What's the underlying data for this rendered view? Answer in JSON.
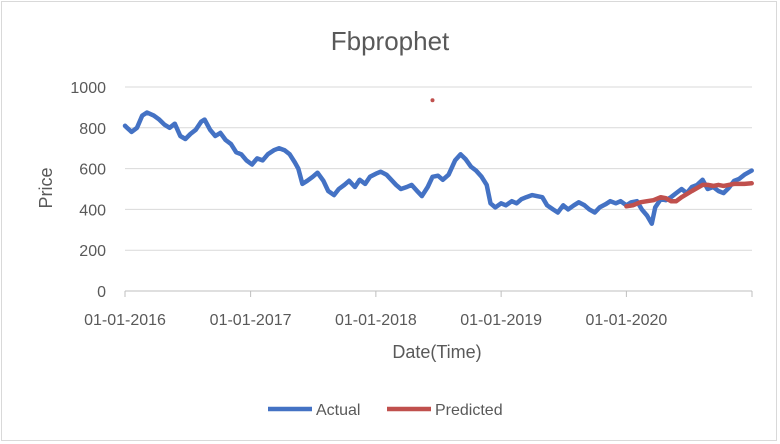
{
  "chart_data": {
    "type": "line",
    "title": "Fbprophet",
    "xlabel": "Date(Time)",
    "ylabel": "Price",
    "ylim": [
      0,
      1000
    ],
    "yticks": [
      0,
      200,
      400,
      600,
      800,
      1000
    ],
    "xlim": [
      "2016-01-01",
      "2021-01-01"
    ],
    "xticks": [
      "01-01-2016",
      "01-01-2017",
      "01-01-2018",
      "01-01-2019",
      "01-01-2020"
    ],
    "grid": "horizontal",
    "legend_position": "bottom",
    "series": [
      {
        "name": "Actual",
        "color": "#4472c4",
        "points": [
          [
            "2016-01-01",
            810
          ],
          [
            "2016-01-20",
            780
          ],
          [
            "2016-02-05",
            800
          ],
          [
            "2016-02-20",
            860
          ],
          [
            "2016-03-05",
            875
          ],
          [
            "2016-03-25",
            860
          ],
          [
            "2016-04-10",
            840
          ],
          [
            "2016-04-25",
            815
          ],
          [
            "2016-05-10",
            800
          ],
          [
            "2016-05-25",
            820
          ],
          [
            "2016-06-10",
            760
          ],
          [
            "2016-06-25",
            745
          ],
          [
            "2016-07-10",
            770
          ],
          [
            "2016-07-25",
            790
          ],
          [
            "2016-08-10",
            830
          ],
          [
            "2016-08-20",
            840
          ],
          [
            "2016-09-05",
            790
          ],
          [
            "2016-09-20",
            760
          ],
          [
            "2016-10-05",
            775
          ],
          [
            "2016-10-20",
            740
          ],
          [
            "2016-11-05",
            720
          ],
          [
            "2016-11-20",
            680
          ],
          [
            "2016-12-05",
            670
          ],
          [
            "2016-12-20",
            640
          ],
          [
            "2017-01-05",
            620
          ],
          [
            "2017-01-20",
            650
          ],
          [
            "2017-02-05",
            640
          ],
          [
            "2017-02-20",
            670
          ],
          [
            "2017-03-10",
            690
          ],
          [
            "2017-03-25",
            700
          ],
          [
            "2017-04-10",
            690
          ],
          [
            "2017-04-25",
            670
          ],
          [
            "2017-05-10",
            630
          ],
          [
            "2017-05-20",
            600
          ],
          [
            "2017-06-01",
            525
          ],
          [
            "2017-06-15",
            540
          ],
          [
            "2017-07-01",
            560
          ],
          [
            "2017-07-15",
            580
          ],
          [
            "2017-08-01",
            540
          ],
          [
            "2017-08-15",
            490
          ],
          [
            "2017-09-01",
            470
          ],
          [
            "2017-09-15",
            500
          ],
          [
            "2017-10-01",
            520
          ],
          [
            "2017-10-15",
            540
          ],
          [
            "2017-11-01",
            510
          ],
          [
            "2017-11-15",
            545
          ],
          [
            "2017-12-01",
            525
          ],
          [
            "2017-12-15",
            560
          ],
          [
            "2018-01-01",
            575
          ],
          [
            "2018-01-15",
            585
          ],
          [
            "2018-02-01",
            570
          ],
          [
            "2018-02-15",
            545
          ],
          [
            "2018-03-01",
            520
          ],
          [
            "2018-03-15",
            500
          ],
          [
            "2018-04-01",
            510
          ],
          [
            "2018-04-15",
            520
          ],
          [
            "2018-05-01",
            490
          ],
          [
            "2018-05-15",
            465
          ],
          [
            "2018-06-01",
            510
          ],
          [
            "2018-06-15",
            560
          ],
          [
            "2018-07-01",
            565
          ],
          [
            "2018-07-15",
            545
          ],
          [
            "2018-08-01",
            570
          ],
          [
            "2018-08-20",
            640
          ],
          [
            "2018-09-05",
            670
          ],
          [
            "2018-09-20",
            645
          ],
          [
            "2018-10-05",
            610
          ],
          [
            "2018-10-20",
            590
          ],
          [
            "2018-11-05",
            560
          ],
          [
            "2018-11-20",
            520
          ],
          [
            "2018-12-01",
            430
          ],
          [
            "2018-12-15",
            410
          ],
          [
            "2019-01-01",
            430
          ],
          [
            "2019-01-15",
            420
          ],
          [
            "2019-02-01",
            440
          ],
          [
            "2019-02-15",
            430
          ],
          [
            "2019-03-01",
            450
          ],
          [
            "2019-03-15",
            460
          ],
          [
            "2019-04-01",
            470
          ],
          [
            "2019-04-15",
            465
          ],
          [
            "2019-05-01",
            460
          ],
          [
            "2019-05-15",
            420
          ],
          [
            "2019-06-01",
            400
          ],
          [
            "2019-06-15",
            385
          ],
          [
            "2019-07-01",
            420
          ],
          [
            "2019-07-15",
            400
          ],
          [
            "2019-08-01",
            420
          ],
          [
            "2019-08-15",
            435
          ],
          [
            "2019-09-01",
            420
          ],
          [
            "2019-09-15",
            400
          ],
          [
            "2019-10-01",
            385
          ],
          [
            "2019-10-15",
            410
          ],
          [
            "2019-11-01",
            425
          ],
          [
            "2019-11-15",
            440
          ],
          [
            "2019-12-01",
            430
          ],
          [
            "2019-12-15",
            440
          ],
          [
            "2020-01-01",
            420
          ],
          [
            "2020-01-15",
            435
          ],
          [
            "2020-02-01",
            440
          ],
          [
            "2020-02-15",
            400
          ],
          [
            "2020-03-01",
            370
          ],
          [
            "2020-03-15",
            330
          ],
          [
            "2020-03-25",
            410
          ],
          [
            "2020-04-10",
            450
          ],
          [
            "2020-04-25",
            445
          ],
          [
            "2020-05-10",
            460
          ],
          [
            "2020-05-25",
            480
          ],
          [
            "2020-06-10",
            500
          ],
          [
            "2020-06-25",
            480
          ],
          [
            "2020-07-10",
            510
          ],
          [
            "2020-07-25",
            520
          ],
          [
            "2020-08-10",
            545
          ],
          [
            "2020-08-25",
            500
          ],
          [
            "2020-09-10",
            510
          ],
          [
            "2020-09-25",
            490
          ],
          [
            "2020-10-10",
            480
          ],
          [
            "2020-10-25",
            505
          ],
          [
            "2020-11-10",
            540
          ],
          [
            "2020-11-25",
            550
          ],
          [
            "2020-12-10",
            570
          ],
          [
            "2020-12-31",
            590
          ]
        ]
      },
      {
        "name": "Predicted",
        "color": "#c0504d",
        "points": [
          [
            "2020-01-01",
            415
          ],
          [
            "2020-01-20",
            420
          ],
          [
            "2020-02-10",
            435
          ],
          [
            "2020-03-01",
            440
          ],
          [
            "2020-03-20",
            445
          ],
          [
            "2020-04-10",
            460
          ],
          [
            "2020-04-25",
            455
          ],
          [
            "2020-05-10",
            440
          ],
          [
            "2020-05-25",
            440
          ],
          [
            "2020-06-10",
            460
          ],
          [
            "2020-06-25",
            475
          ],
          [
            "2020-07-10",
            490
          ],
          [
            "2020-07-25",
            505
          ],
          [
            "2020-08-10",
            520
          ],
          [
            "2020-08-25",
            520
          ],
          [
            "2020-09-10",
            515
          ],
          [
            "2020-09-25",
            520
          ],
          [
            "2020-10-10",
            515
          ],
          [
            "2020-10-25",
            520
          ],
          [
            "2020-11-10",
            525
          ],
          [
            "2020-11-25",
            525
          ],
          [
            "2020-12-10",
            525
          ],
          [
            "2020-12-31",
            528
          ]
        ],
        "outliers": [
          [
            "2018-06-15",
            935
          ]
        ]
      }
    ]
  }
}
